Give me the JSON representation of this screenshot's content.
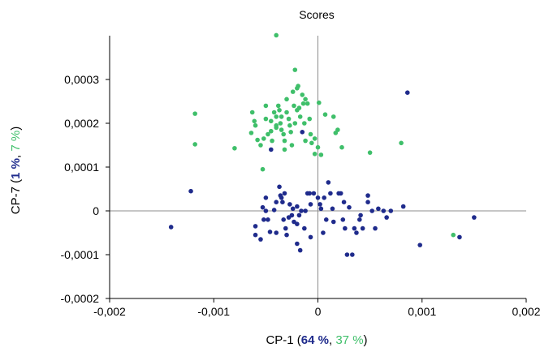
{
  "chart_data": {
    "type": "scatter",
    "title": "Scores",
    "xlabel": {
      "prefix": "CP-1 (",
      "pct1": "64 %",
      "sep": ", ",
      "pct2": "37 %",
      "suffix": ")"
    },
    "ylabel": {
      "prefix": "CP-7 (",
      "pct1": "1 %",
      "sep": ", ",
      "pct2": "7 %",
      "suffix": ")"
    },
    "xlim": [
      -0.002,
      0.002
    ],
    "ylim": [
      -0.0002,
      0.0004
    ],
    "x_ticks": [
      {
        "value": -0.002,
        "label": "-0,002"
      },
      {
        "value": -0.001,
        "label": "-0,001"
      },
      {
        "value": 0,
        "label": "0"
      },
      {
        "value": 0.001,
        "label": "0,001"
      },
      {
        "value": 0.002,
        "label": "0,002"
      }
    ],
    "y_ticks": [
      {
        "value": -0.0002,
        "label": "-0,0002"
      },
      {
        "value": -0.0001,
        "label": "-0,0001"
      },
      {
        "value": 0,
        "label": "0"
      },
      {
        "value": 0.0001,
        "label": "0,0001"
      },
      {
        "value": 0.0002,
        "label": "0,0002"
      },
      {
        "value": 0.0003,
        "label": "0,0003"
      }
    ],
    "zero_lines": true,
    "grid": false,
    "colors": {
      "series1": "#1f2b8c",
      "series2": "#3fbf6a",
      "axis": "#000000",
      "zero_line": "#8c8c8c"
    },
    "series": [
      {
        "color": "#1f2b8c",
        "points": [
          [
            -0.00141,
            -3.7e-05
          ],
          [
            -0.00122,
            4.5e-05
          ],
          [
            -0.0006,
            -3.5e-05
          ],
          [
            -0.0006,
            -5.5e-05
          ],
          [
            -0.00055,
            -6.5e-05
          ],
          [
            -0.00053,
            8e-06
          ],
          [
            -0.00052,
            -2e-05
          ],
          [
            -0.0005,
            0.0
          ],
          [
            -0.00048,
            -2e-05
          ],
          [
            -0.00046,
            -4.8e-05
          ],
          [
            -0.0005,
            3e-05
          ],
          [
            -0.00042,
            2e-06
          ],
          [
            -0.0004,
            2e-05
          ],
          [
            -0.0004,
            -5e-05
          ],
          [
            -0.00037,
            5.5e-05
          ],
          [
            -0.00036,
            3.5e-05
          ],
          [
            -0.00035,
            3e-05
          ],
          [
            -0.00034,
            2e-05
          ],
          [
            -0.00033,
            -2e-05
          ],
          [
            -0.00032,
            4e-05
          ],
          [
            -0.00031,
            -4e-05
          ],
          [
            -0.0003,
            -5.5e-05
          ],
          [
            -0.00028,
            -1.5e-05
          ],
          [
            -0.00027,
            1.5e-05
          ],
          [
            -0.00025,
            -1e-05
          ],
          [
            -0.00024,
            5e-06
          ],
          [
            -0.00023,
            -2.5e-05
          ],
          [
            -0.0002,
            -3e-05
          ],
          [
            -0.0002,
            1e-05
          ],
          [
            -0.00018,
            -1e-05
          ],
          [
            -0.0002,
            -7.5e-05
          ],
          [
            -0.00017,
            -9e-05
          ],
          [
            -0.00016,
            0.0
          ],
          [
            -0.00013,
            -4e-05
          ],
          [
            -0.00012,
            0.0
          ],
          [
            -0.0001,
            4e-05
          ],
          [
            -8e-05,
            4e-05
          ],
          [
            -7e-05,
            1.5e-05
          ],
          [
            -7e-05,
            -6e-05
          ],
          [
            -4e-05,
            4e-05
          ],
          [
            0.0,
            3e-05
          ],
          [
            2e-05,
            1.5e-05
          ],
          [
            3e-05,
            5e-06
          ],
          [
            5e-05,
            -5e-05
          ],
          [
            6e-05,
            3e-05
          ],
          [
            8e-05,
            -2e-05
          ],
          [
            0.0001,
            6.5e-05
          ],
          [
            0.00012,
            4e-05
          ],
          [
            0.00014,
            5e-06
          ],
          [
            0.00015,
            -2.5e-05
          ],
          [
            0.0002,
            4e-05
          ],
          [
            0.00022,
            4e-05
          ],
          [
            0.00024,
            -2e-05
          ],
          [
            0.00025,
            2e-05
          ],
          [
            0.00026,
            -4e-05
          ],
          [
            0.00028,
            -0.0001
          ],
          [
            0.0003,
            8e-06
          ],
          [
            0.00033,
            -0.0001
          ],
          [
            0.00035,
            -4e-05
          ],
          [
            0.00037,
            -5e-05
          ],
          [
            0.00041,
            -1e-05
          ],
          [
            0.0004,
            -2e-05
          ],
          [
            0.00043,
            -4e-05
          ],
          [
            0.00048,
            2e-05
          ],
          [
            0.00048,
            3.5e-05
          ],
          [
            0.00052,
            0.0
          ],
          [
            0.00055,
            -4e-05
          ],
          [
            0.00058,
            5e-06
          ],
          [
            0.00063,
            0.0
          ],
          [
            0.00066,
            -1.5e-05
          ],
          [
            0.0007,
            0.0
          ],
          [
            0.00082,
            1e-05
          ],
          [
            0.00086,
            0.00027
          ],
          [
            0.00098,
            -7.8e-05
          ],
          [
            0.00136,
            -6e-05
          ],
          [
            0.0015,
            -1.5e-05
          ],
          [
            -0.00015,
            0.00018
          ],
          [
            -0.00045,
            0.00014
          ]
        ]
      },
      {
        "color": "#3fbf6a",
        "points": [
          [
            -0.0004,
            0.000401
          ],
          [
            -0.00118,
            0.000222
          ],
          [
            -0.00118,
            0.000152
          ],
          [
            -0.0008,
            0.000143
          ],
          [
            -0.00064,
            0.000178
          ],
          [
            -0.00063,
            0.000225
          ],
          [
            -0.00061,
            0.000205
          ],
          [
            -0.0006,
            0.000195
          ],
          [
            -0.00058,
            0.000162
          ],
          [
            -0.00055,
            0.00015
          ],
          [
            -0.00052,
            0.000165
          ],
          [
            -0.0005,
            0.00021
          ],
          [
            -0.0005,
            0.00024
          ],
          [
            -0.00048,
            0.000175
          ],
          [
            -0.00045,
            0.000205
          ],
          [
            -0.00045,
            0.000182
          ],
          [
            -0.00044,
            0.00016
          ],
          [
            -0.00042,
            0.000225
          ],
          [
            -0.0004,
            0.000215
          ],
          [
            -0.0004,
            0.000195
          ],
          [
            -0.0004,
            0.00019
          ],
          [
            -0.00038,
            0.00024
          ],
          [
            -0.00037,
            0.00023
          ],
          [
            -0.00036,
            0.0002
          ],
          [
            -0.00035,
            0.000215
          ],
          [
            -0.00035,
            0.000185
          ],
          [
            -0.00033,
            0.000175
          ],
          [
            -0.00032,
            0.00016
          ],
          [
            -0.00032,
            0.00014
          ],
          [
            -0.0003,
            0.000255
          ],
          [
            -0.0003,
            0.000225
          ],
          [
            -0.00028,
            0.00021
          ],
          [
            -0.00027,
            0.000195
          ],
          [
            -0.00026,
            0.00018
          ],
          [
            -0.00025,
            0.00015
          ],
          [
            -0.00024,
            0.000272
          ],
          [
            -0.00023,
            0.00024
          ],
          [
            -0.00022,
            0.000322
          ],
          [
            -0.00022,
            0.0002
          ],
          [
            -0.0002,
            0.00028
          ],
          [
            -0.0002,
            0.00023
          ],
          [
            -0.00019,
            0.000285
          ],
          [
            -0.00018,
            0.000235
          ],
          [
            -0.00017,
            0.000215
          ],
          [
            -0.00015,
            0.000265
          ],
          [
            -0.00014,
            0.000245
          ],
          [
            -0.00013,
            0.0002
          ],
          [
            -0.00012,
            0.000255
          ],
          [
            -0.00012,
            0.00016
          ],
          [
            -0.0001,
            0.000245
          ],
          [
            -8e-05,
            0.00021
          ],
          [
            -7e-05,
            0.000175
          ],
          [
            -6e-05,
            0.000155
          ],
          [
            -3e-05,
            0.000165
          ],
          [
            -3e-05,
            0.00013
          ],
          [
            0.0,
            0.000145
          ],
          [
            1e-05,
            0.000247
          ],
          [
            3e-05,
            0.000128
          ],
          [
            7e-05,
            0.00022
          ],
          [
            0.00015,
            0.000215
          ],
          [
            0.00017,
            0.000178
          ],
          [
            0.00019,
            0.000185
          ],
          [
            0.00023,
            0.000145
          ],
          [
            -0.00053,
            9.5e-05
          ],
          [
            0.0005,
            0.000133
          ],
          [
            0.0008,
            0.000155
          ],
          [
            0.0013,
            -5.5e-05
          ]
        ]
      }
    ]
  }
}
